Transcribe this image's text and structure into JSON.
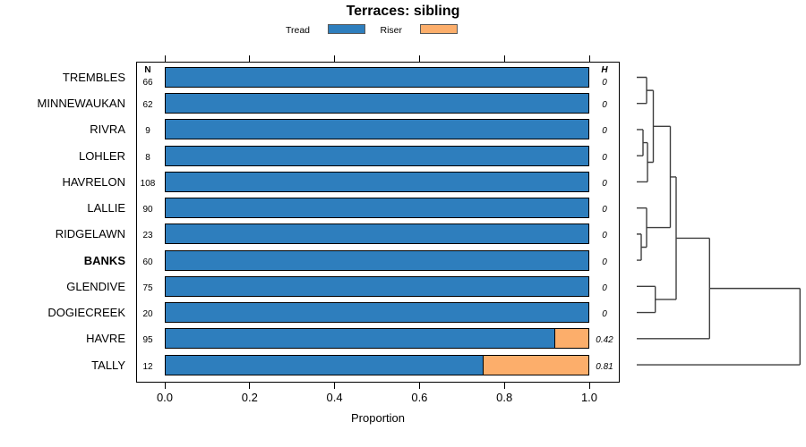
{
  "title": "Terraces: sibling",
  "legend": [
    {
      "label": "Tread",
      "color": "#2E7EBD"
    },
    {
      "label": "Riser",
      "color": "#FCAE6B"
    }
  ],
  "columns": {
    "n_header": "N",
    "h_header": "H"
  },
  "axis": {
    "xlabel": "Proportion",
    "ticks": [
      "0.0",
      "0.2",
      "0.4",
      "0.6",
      "0.8",
      "1.0"
    ]
  },
  "chart_data": {
    "type": "bar",
    "orientation": "horizontal-stacked",
    "title": "Terraces: sibling",
    "xlabel": "Proportion",
    "xlim": [
      0.0,
      1.0
    ],
    "legend_position": "top",
    "grid": false,
    "categories": [
      "TREMBLES",
      "MINNEWAUKAN",
      "RIVRA",
      "LOHLER",
      "HAVRELON",
      "LALLIE",
      "RIDGELAWN",
      "BANKS",
      "GLENDIVE",
      "DOGIECREEK",
      "HAVRE",
      "TALLY"
    ],
    "bold_category": "BANKS",
    "n_values": [
      66,
      62,
      9,
      8,
      108,
      90,
      23,
      60,
      75,
      20,
      95,
      12
    ],
    "h_labels": [
      "0",
      "0",
      "0",
      "0",
      "0",
      "0",
      "0",
      "0",
      "0",
      "0",
      "0.42",
      "0.81"
    ],
    "series": [
      {
        "name": "Tread",
        "color": "#2E7EBD",
        "values": [
          1.0,
          1.0,
          1.0,
          1.0,
          1.0,
          1.0,
          1.0,
          1.0,
          1.0,
          1.0,
          0.92,
          0.75
        ]
      },
      {
        "name": "Riser",
        "color": "#FCAE6B",
        "values": [
          0.0,
          0.0,
          0.0,
          0.0,
          0.0,
          0.0,
          0.0,
          0.0,
          0.0,
          0.0,
          0.08,
          0.25
        ]
      }
    ],
    "dendrogram": {
      "leaf_x": 711,
      "line_color": "#3F3F3F",
      "merges": [
        [
          "L0",
          "L1",
          722
        ],
        [
          "L2",
          "L3",
          718
        ],
        [
          "m1",
          "L4",
          723
        ],
        [
          "m0",
          "m2",
          729.5
        ],
        [
          "L6",
          "L7",
          716
        ],
        [
          "L5",
          "m4",
          722
        ],
        [
          "m3",
          "m5",
          748.5
        ],
        [
          "L8",
          "L9",
          731.7
        ],
        [
          "m6",
          "m7",
          755
        ],
        [
          "m8",
          "L10",
          792.3
        ],
        [
          "m9",
          "L11",
          893.3
        ]
      ]
    }
  }
}
